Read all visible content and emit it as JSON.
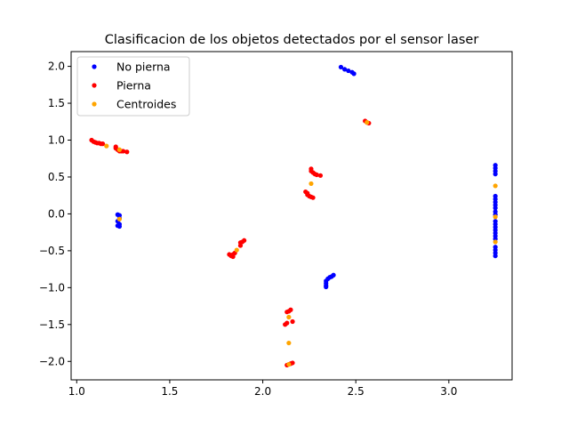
{
  "chart_data": {
    "type": "scatter",
    "title": "Clasificacion de los objetos detectados por el sensor laser",
    "xlabel": "",
    "ylabel": "",
    "xlim": [
      0.97,
      3.34
    ],
    "ylim": [
      -2.25,
      2.2
    ],
    "xticks": [
      1.0,
      1.5,
      2.0,
      2.5,
      3.0
    ],
    "xtick_labels": [
      "1.0",
      "1.5",
      "2.0",
      "2.5",
      "3.0"
    ],
    "yticks": [
      -2.0,
      -1.5,
      -1.0,
      -0.5,
      0.0,
      0.5,
      1.0,
      1.5,
      2.0
    ],
    "ytick_labels": [
      "−2.0",
      "−1.5",
      "−1.0",
      "−0.5",
      "0.0",
      "0.5",
      "1.0",
      "1.5",
      "2.0"
    ],
    "grid": false,
    "legend_position": "top-left",
    "series": [
      {
        "name": "No pierna",
        "color": "#0000ff",
        "points": [
          [
            1.22,
            -0.01
          ],
          [
            1.23,
            -0.02
          ],
          [
            1.23,
            -0.06
          ],
          [
            1.22,
            -0.1
          ],
          [
            1.23,
            -0.14
          ],
          [
            1.22,
            -0.16
          ],
          [
            1.23,
            -0.17
          ],
          [
            2.42,
            1.99
          ],
          [
            2.44,
            1.96
          ],
          [
            2.46,
            1.94
          ],
          [
            2.48,
            1.92
          ],
          [
            2.49,
            1.9
          ],
          [
            2.34,
            -0.97
          ],
          [
            2.34,
            -0.94
          ],
          [
            2.34,
            -0.91
          ],
          [
            2.35,
            -0.88
          ],
          [
            2.36,
            -0.86
          ],
          [
            2.37,
            -0.85
          ],
          [
            2.38,
            -0.83
          ],
          [
            2.34,
            -0.99
          ],
          [
            3.25,
            0.66
          ],
          [
            3.25,
            0.62
          ],
          [
            3.25,
            0.58
          ],
          [
            3.25,
            0.54
          ],
          [
            3.25,
            0.24
          ],
          [
            3.25,
            0.2
          ],
          [
            3.25,
            0.16
          ],
          [
            3.25,
            0.12
          ],
          [
            3.25,
            0.08
          ],
          [
            3.25,
            0.03
          ],
          [
            3.25,
            -0.01
          ],
          [
            3.25,
            -0.1
          ],
          [
            3.25,
            -0.14
          ],
          [
            3.25,
            -0.18
          ],
          [
            3.25,
            -0.22
          ],
          [
            3.25,
            -0.26
          ],
          [
            3.25,
            -0.3
          ],
          [
            3.25,
            -0.34
          ],
          [
            3.25,
            -0.45
          ],
          [
            3.25,
            -0.49
          ],
          [
            3.25,
            -0.53
          ],
          [
            3.25,
            -0.57
          ]
        ]
      },
      {
        "name": "Pierna",
        "color": "#ff0000",
        "points": [
          [
            1.08,
            1.0
          ],
          [
            1.09,
            0.98
          ],
          [
            1.1,
            0.97
          ],
          [
            1.11,
            0.96
          ],
          [
            1.12,
            0.96
          ],
          [
            1.13,
            0.95
          ],
          [
            1.14,
            0.95
          ],
          [
            1.21,
            0.91
          ],
          [
            1.21,
            0.89
          ],
          [
            1.22,
            0.87
          ],
          [
            1.23,
            0.85
          ],
          [
            1.24,
            0.85
          ],
          [
            1.25,
            0.85
          ],
          [
            1.27,
            0.84
          ],
          [
            1.82,
            -0.55
          ],
          [
            1.83,
            -0.57
          ],
          [
            1.84,
            -0.58
          ],
          [
            1.84,
            -0.55
          ],
          [
            1.85,
            -0.53
          ],
          [
            1.88,
            -0.43
          ],
          [
            1.88,
            -0.39
          ],
          [
            1.89,
            -0.38
          ],
          [
            1.9,
            -0.36
          ],
          [
            2.26,
            0.61
          ],
          [
            2.26,
            0.58
          ],
          [
            2.27,
            0.56
          ],
          [
            2.28,
            0.54
          ],
          [
            2.29,
            0.53
          ],
          [
            2.31,
            0.52
          ],
          [
            2.23,
            0.3
          ],
          [
            2.24,
            0.28
          ],
          [
            2.24,
            0.26
          ],
          [
            2.25,
            0.24
          ],
          [
            2.26,
            0.23
          ],
          [
            2.27,
            0.22
          ],
          [
            2.55,
            1.26
          ],
          [
            2.56,
            1.24
          ],
          [
            2.57,
            1.23
          ],
          [
            2.13,
            -1.33
          ],
          [
            2.14,
            -1.32
          ],
          [
            2.15,
            -1.3
          ],
          [
            2.12,
            -1.5
          ],
          [
            2.13,
            -1.48
          ],
          [
            2.16,
            -1.46
          ],
          [
            2.13,
            -2.05
          ],
          [
            2.14,
            -2.04
          ],
          [
            2.15,
            -2.03
          ],
          [
            2.16,
            -2.02
          ]
        ]
      },
      {
        "name": "Centroides",
        "color": "#ffa500",
        "points": [
          [
            1.16,
            0.92
          ],
          [
            1.23,
            0.87
          ],
          [
            1.23,
            -0.07
          ],
          [
            1.86,
            -0.49
          ],
          [
            2.26,
            0.41
          ],
          [
            2.56,
            1.24
          ],
          [
            2.14,
            -1.4
          ],
          [
            2.14,
            -1.75
          ],
          [
            2.14,
            -2.04
          ],
          [
            3.25,
            0.38
          ],
          [
            3.25,
            -0.04
          ],
          [
            3.25,
            -0.38
          ]
        ]
      }
    ]
  }
}
